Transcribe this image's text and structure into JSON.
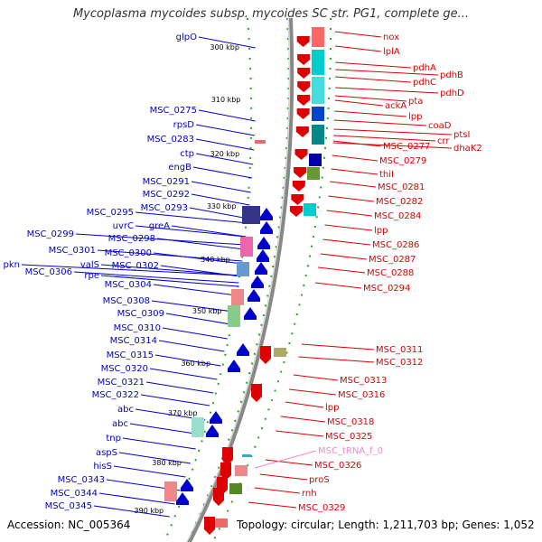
{
  "title": "Mycoplasma mycoides subsp. mycoides SC str. PG1, complete ge...",
  "footer": {
    "accession": "Accession: NC_005364",
    "summary": "Topology: circular; Length: 1,211,703 bp; Genes: 1,052"
  },
  "colors": {
    "minus_strand": "#0000cc",
    "plus_strand": "#dd0000",
    "trna": "#ee88cc",
    "backbone": "#888888",
    "tick_dots": "#22aa22"
  },
  "scale_ticks": [
    "300 kbp",
    "310 kbp",
    "320 kbp",
    "330 kbp",
    "340 kbp",
    "350 kbp",
    "360 kbp",
    "370 kbp",
    "380 kbp",
    "390 kbp"
  ],
  "minus_labels": [
    "glpO",
    "MSC_0275",
    "rpsD",
    "MSC_0283",
    "ctp",
    "engB",
    "MSC_0291",
    "MSC_0292",
    "MSC_0293",
    "MSC_0295",
    "uvrC",
    "greA",
    "MSC_0299",
    "MSC_0298",
    "MSC_0301",
    "MSC_0300",
    "valS",
    "MSC_0302",
    "pkn",
    "MSC_0306",
    "rpe",
    "MSC_0304",
    "MSC_0308",
    "MSC_0309",
    "MSC_0310",
    "MSC_0314",
    "MSC_0315",
    "MSC_0320",
    "MSC_0321",
    "MSC_0322",
    "abc",
    "abc",
    "tnp",
    "aspS",
    "hisS",
    "MSC_0343",
    "MSC_0344",
    "MSC_0345"
  ],
  "plus_labels": [
    "nox",
    "lplA",
    "pdhA",
    "pdhB",
    "pdhC",
    "pdhD",
    "pta",
    "ackA",
    "lpp",
    "coaD",
    "ptsI",
    "crr",
    "MSC_0277",
    "dhaK2",
    "MSC_0279",
    "thiI",
    "MSC_0281",
    "MSC_0282",
    "MSC_0284",
    "lpp",
    "MSC_0286",
    "MSC_0287",
    "MSC_0288",
    "MSC_0294",
    "MSC_0311",
    "MSC_0312",
    "MSC_0313",
    "MSC_0316",
    "lpp",
    "MSC_0318",
    "MSC_0325",
    "MSC_0326",
    "proS",
    "rnh",
    "MSC_0329"
  ],
  "trna_labels": [
    "MSC_tRNA_f_0"
  ]
}
